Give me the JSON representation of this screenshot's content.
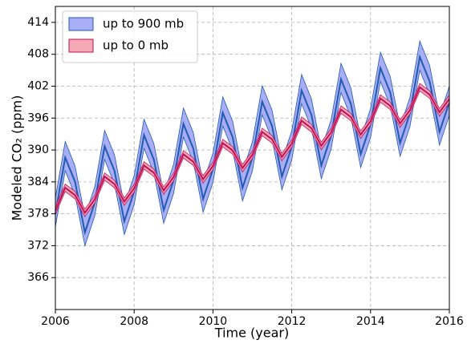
{
  "chart_data": {
    "type": "band-line",
    "xlabel": "Time (year)",
    "ylabel": "Modeled CO₂ (ppm)",
    "x": [
      2006,
      2006.25,
      2006.5,
      2006.75,
      2007,
      2007.25,
      2007.5,
      2007.75,
      2008,
      2008.25,
      2008.5,
      2008.75,
      2009,
      2009.25,
      2009.5,
      2009.75,
      2010,
      2010.25,
      2010.5,
      2010.75,
      2011,
      2011.25,
      2011.5,
      2011.75,
      2012,
      2012.25,
      2012.5,
      2012.75,
      2013,
      2013.25,
      2013.5,
      2013.75,
      2014,
      2014.25,
      2014.5,
      2014.75,
      2015,
      2015.25,
      2015.5,
      2015.75,
      2016
    ],
    "series": [
      {
        "name": "up to 900 mb",
        "color": "#1f5cb0",
        "fill": "#a9adf5",
        "values": [
          378.0,
          388.6,
          384.0,
          374.5,
          380.1,
          390.7,
          386.1,
          376.6,
          382.2,
          392.8,
          388.2,
          378.7,
          384.3,
          394.9,
          390.3,
          380.8,
          386.4,
          397.0,
          392.4,
          382.9,
          388.5,
          399.1,
          394.5,
          385.0,
          390.6,
          401.2,
          396.6,
          387.1,
          392.7,
          403.3,
          398.7,
          389.2,
          394.8,
          405.4,
          400.8,
          391.3,
          396.9,
          407.5,
          402.9,
          393.4,
          399.0
        ],
        "lower": [
          375.5,
          386.1,
          381.5,
          372.0,
          377.6,
          388.2,
          383.6,
          374.1,
          379.7,
          390.3,
          385.7,
          376.2,
          381.8,
          392.4,
          387.8,
          378.3,
          383.9,
          394.5,
          389.9,
          380.4,
          386.0,
          396.6,
          392.0,
          382.5,
          388.1,
          398.7,
          394.1,
          384.6,
          390.2,
          400.8,
          396.2,
          386.7,
          392.3,
          402.9,
          398.3,
          388.8,
          394.4,
          405.0,
          400.4,
          390.9,
          396.5
        ],
        "upper": [
          381.0,
          391.6,
          387.0,
          377.5,
          383.1,
          393.7,
          389.1,
          379.6,
          385.2,
          395.8,
          391.2,
          381.7,
          387.3,
          397.9,
          393.3,
          383.8,
          389.4,
          400.0,
          395.4,
          385.9,
          391.5,
          402.1,
          397.5,
          388.0,
          393.6,
          404.2,
          399.6,
          390.1,
          395.7,
          406.3,
          401.7,
          392.2,
          397.8,
          408.4,
          403.8,
          394.3,
          399.9,
          410.5,
          405.9,
          396.4,
          402.0
        ]
      },
      {
        "name": "up to 0 mb",
        "color": "#c0105a",
        "fill": "#f4a9b4",
        "values": [
          378.6,
          382.9,
          381.5,
          378.2,
          380.7,
          385.0,
          383.6,
          380.3,
          382.8,
          387.1,
          385.7,
          382.4,
          384.9,
          389.2,
          387.8,
          384.5,
          387.0,
          391.3,
          389.9,
          386.6,
          389.1,
          393.4,
          392.0,
          388.7,
          391.2,
          395.5,
          394.1,
          390.8,
          393.3,
          397.6,
          396.2,
          392.9,
          395.4,
          399.7,
          398.3,
          395.0,
          397.5,
          401.8,
          400.4,
          397.1,
          399.6
        ],
        "lower": [
          377.9,
          382.2,
          380.8,
          377.5,
          380.0,
          384.3,
          382.9,
          379.6,
          382.1,
          386.4,
          385.0,
          381.7,
          384.2,
          388.5,
          387.1,
          383.8,
          386.3,
          390.6,
          389.2,
          385.9,
          388.4,
          392.7,
          391.3,
          388.0,
          390.5,
          394.8,
          393.4,
          390.1,
          392.6,
          396.9,
          395.5,
          392.2,
          394.7,
          399.0,
          397.6,
          394.3,
          396.8,
          401.1,
          399.7,
          396.4,
          398.9
        ],
        "upper": [
          379.3,
          383.6,
          382.2,
          378.9,
          381.4,
          385.7,
          384.3,
          381.0,
          383.5,
          387.8,
          386.4,
          383.1,
          385.6,
          389.9,
          388.5,
          385.2,
          387.7,
          392.0,
          390.6,
          387.3,
          389.8,
          394.1,
          392.7,
          389.4,
          391.9,
          396.2,
          394.8,
          391.5,
          394.0,
          398.3,
          396.9,
          393.6,
          396.1,
          400.4,
          399.0,
          395.7,
          398.2,
          402.5,
          401.1,
          397.8,
          400.3
        ]
      }
    ],
    "xlim": [
      2006,
      2016
    ],
    "xticks": [
      2006,
      2008,
      2010,
      2012,
      2014,
      2016
    ],
    "ylim": [
      360,
      417
    ],
    "yticks": [
      366,
      372,
      378,
      384,
      390,
      396,
      402,
      408,
      414
    ],
    "grid": true,
    "legend": "upper left"
  }
}
